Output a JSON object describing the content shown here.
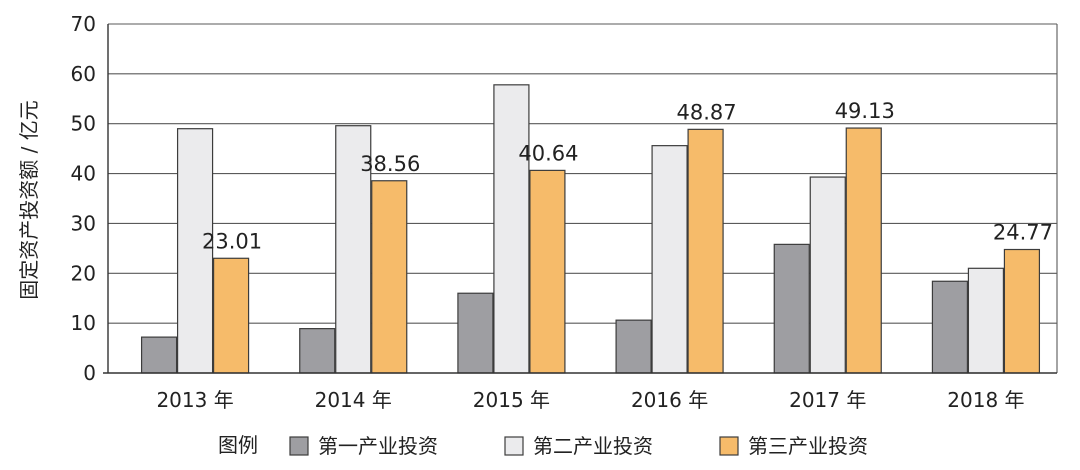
{
  "chart_data": {
    "type": "bar",
    "ylabel": "固定资产投资额 / 亿元",
    "ylim": [
      0,
      70
    ],
    "yticks": [
      0,
      10,
      20,
      30,
      40,
      50,
      60,
      70
    ],
    "grid": true,
    "categories": [
      "2013 年",
      "2014 年",
      "2015 年",
      "2016 年",
      "2017 年",
      "2018 年"
    ],
    "series": [
      {
        "name": "第一产业投资",
        "color": "#9e9ea2",
        "values": [
          7.2,
          8.9,
          16.0,
          10.6,
          25.8,
          18.4
        ]
      },
      {
        "name": "第二产业投资",
        "color": "#ebebed",
        "values": [
          49.0,
          49.6,
          57.8,
          45.6,
          39.3,
          21.0
        ]
      },
      {
        "name": "第三产业投资",
        "color": "#f6bb6a",
        "values": [
          23.01,
          38.56,
          40.64,
          48.87,
          49.13,
          24.77
        ],
        "labels": [
          "23.01",
          "38.56",
          "40.64",
          "48.87",
          "49.13",
          "24.77"
        ]
      }
    ],
    "legend": {
      "title": "图例",
      "position": "bottom-center"
    }
  }
}
